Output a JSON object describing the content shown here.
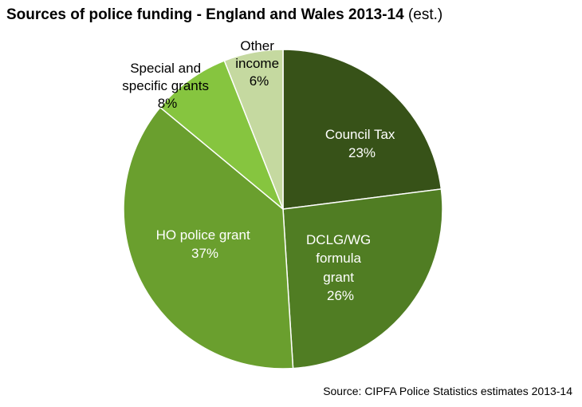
{
  "chart_data": {
    "type": "pie",
    "title_bold": "Sources of police funding - England and Wales 2013-14",
    "title_suffix": "(est.)",
    "slices": [
      {
        "label": "Council Tax",
        "value": 23,
        "display": "23%",
        "color": "#375218"
      },
      {
        "label": "DCLG/WG formula grant",
        "value": 26,
        "display": "26%",
        "color": "#507d23"
      },
      {
        "label": "HO police grant",
        "value": 37,
        "display": "37%",
        "color": "#6a9f2e"
      },
      {
        "label": "Special and specific grants",
        "value": 8,
        "display": "8%",
        "color": "#86c53f"
      },
      {
        "label": "Other income",
        "value": 6,
        "display": "6%",
        "color": "#c5d9a0"
      }
    ],
    "source": "Source: CIPFA Police Statistics estimates 2013-14"
  }
}
